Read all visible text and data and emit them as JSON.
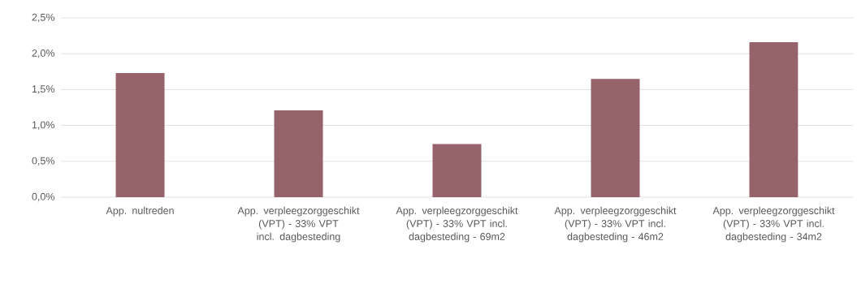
{
  "chart_data": {
    "type": "bar",
    "categories": [
      "App. nultreden",
      "App. verpleegzorggeschikt (VPT) - 33% VPT incl. dagbesteding",
      "App. verpleegzorggeschikt (VPT) - 33% VPT incl. dagbesteding - 69m2",
      "App. verpleegzorggeschikt (VPT) - 33% VPT incl. dagbesteding - 46m2",
      "App. verpleegzorggeschikt (VPT) - 33% VPT incl. dagbesteding - 34m2"
    ],
    "values": [
      1.73,
      1.21,
      0.74,
      1.65,
      2.16
    ],
    "color": "#96636b",
    "ylim": [
      0,
      2.5
    ],
    "yticks": [
      {
        "value": 0,
        "label": "0,0%"
      },
      {
        "value": 0.5,
        "label": "0,5%"
      },
      {
        "value": 1.0,
        "label": "1,0%"
      },
      {
        "value": 1.5,
        "label": "1,5%"
      },
      {
        "value": 2.0,
        "label": "2,0%"
      },
      {
        "value": 2.5,
        "label": "2,5%"
      }
    ],
    "grid": "y"
  }
}
